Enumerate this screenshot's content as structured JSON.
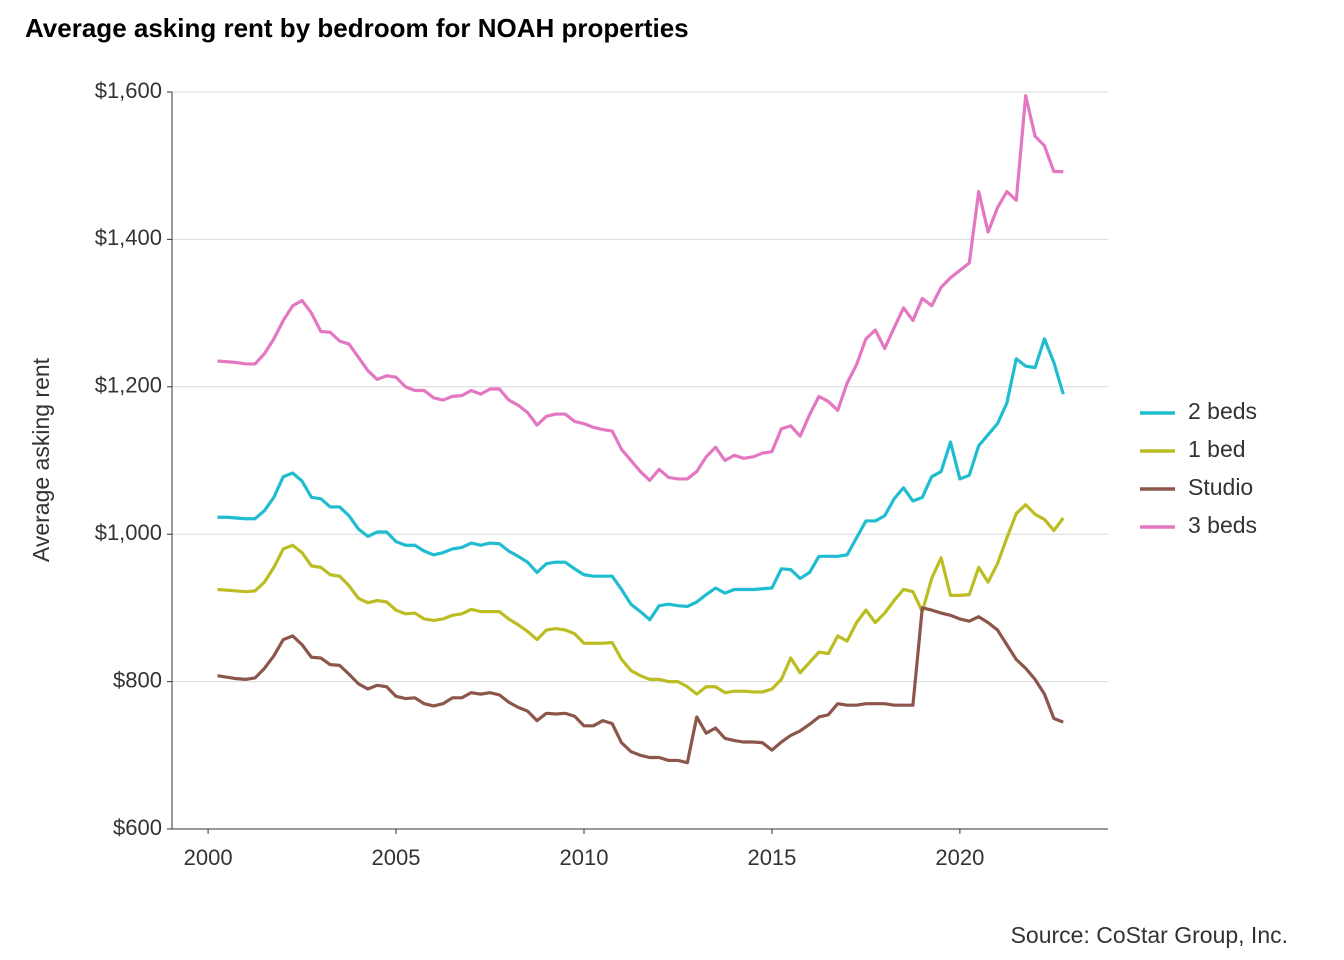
{
  "chart_data": {
    "type": "line",
    "title": "Average asking rent by bedroom for NOAH properties",
    "y_label": "Average asking rent",
    "source": "Source: CoStar Group, Inc.",
    "xlim": [
      1999.04,
      2023.94
    ],
    "ylim": [
      600,
      1600
    ],
    "xticks": [
      2000,
      2005,
      2010,
      2015,
      2020
    ],
    "yticks": [
      {
        "value": 600,
        "label": "$600"
      },
      {
        "value": 800,
        "label": "$800"
      },
      {
        "value": 1000,
        "label": "$1,000"
      },
      {
        "value": 1200,
        "label": "$1,200"
      },
      {
        "value": 1400,
        "label": "$1,400"
      },
      {
        "value": 1600,
        "label": "$1,600"
      }
    ],
    "grid": true,
    "legend": "right",
    "x": [
      2000.25,
      2000.5,
      2000.75,
      2001,
      2001.25,
      2001.5,
      2001.75,
      2002,
      2002.25,
      2002.5,
      2002.75,
      2003,
      2003.25,
      2003.5,
      2003.75,
      2004,
      2004.25,
      2004.5,
      2004.75,
      2005,
      2005.25,
      2005.5,
      2005.75,
      2006,
      2006.25,
      2006.5,
      2006.75,
      2007,
      2007.25,
      2007.5,
      2007.75,
      2008,
      2008.25,
      2008.5,
      2008.75,
      2009,
      2009.25,
      2009.5,
      2009.75,
      2010,
      2010.25,
      2010.5,
      2010.75,
      2011,
      2011.25,
      2011.5,
      2011.75,
      2012,
      2012.25,
      2012.5,
      2012.75,
      2013,
      2013.25,
      2013.5,
      2013.75,
      2014,
      2014.25,
      2014.5,
      2014.75,
      2015,
      2015.25,
      2015.5,
      2015.75,
      2016,
      2016.25,
      2016.5,
      2016.75,
      2017,
      2017.25,
      2017.5,
      2017.75,
      2018,
      2018.25,
      2018.5,
      2018.75,
      2019,
      2019.25,
      2019.5,
      2019.75,
      2020,
      2020.25,
      2020.5,
      2020.75,
      2021,
      2021.25,
      2021.5,
      2021.75,
      2022,
      2022.25,
      2022.5,
      2022.75
    ],
    "series": [
      {
        "name": "2 beds",
        "color": "#1fbdcf",
        "values": [
          1023,
          1023,
          1022,
          1021,
          1021,
          1032,
          1050,
          1078,
          1083,
          1072,
          1050,
          1048,
          1037,
          1037,
          1025,
          1007,
          997,
          1003,
          1003,
          990,
          985,
          985,
          977,
          972,
          975,
          980,
          982,
          988,
          985,
          988,
          987,
          977,
          970,
          962,
          948,
          960,
          962,
          962,
          953,
          945,
          943,
          943,
          943,
          925,
          905,
          895,
          884,
          903,
          905,
          903,
          902,
          908,
          918,
          927,
          920,
          925,
          925,
          925,
          926,
          927,
          953,
          952,
          940,
          948,
          970,
          970,
          970,
          972,
          995,
          1018,
          1018,
          1025,
          1048,
          1063,
          1045,
          1050,
          1078,
          1085,
          1125,
          1075,
          1080,
          1120,
          1135,
          1150,
          1178,
          1238,
          1228,
          1226,
          1265,
          1233,
          1190
        ]
      },
      {
        "name": "1 bed",
        "color": "#bcbd22",
        "values": [
          925,
          924,
          923,
          922,
          923,
          935,
          955,
          980,
          985,
          975,
          957,
          955,
          945,
          943,
          930,
          913,
          907,
          910,
          908,
          897,
          892,
          893,
          885,
          883,
          885,
          890,
          892,
          898,
          895,
          895,
          895,
          885,
          877,
          868,
          857,
          870,
          872,
          870,
          865,
          852,
          852,
          852,
          853,
          830,
          815,
          808,
          803,
          803,
          800,
          800,
          793,
          783,
          793,
          793,
          785,
          787,
          787,
          786,
          786,
          790,
          803,
          832,
          812,
          826,
          840,
          838,
          862,
          855,
          880,
          897,
          880,
          893,
          910,
          925,
          922,
          895,
          940,
          968,
          917,
          917,
          918,
          955,
          935,
          960,
          995,
          1028,
          1040,
          1027,
          1020,
          1005,
          1022
        ]
      },
      {
        "name": "Studio",
        "color": "#8c564b",
        "values": [
          808,
          806,
          804,
          803,
          805,
          818,
          835,
          857,
          862,
          850,
          833,
          832,
          823,
          822,
          810,
          797,
          790,
          795,
          793,
          780,
          777,
          778,
          770,
          767,
          770,
          778,
          778,
          785,
          783,
          785,
          782,
          772,
          765,
          760,
          747,
          757,
          756,
          757,
          753,
          740,
          740,
          747,
          743,
          717,
          705,
          700,
          697,
          697,
          693,
          693,
          690,
          752,
          730,
          737,
          723,
          720,
          718,
          718,
          717,
          707,
          718,
          727,
          733,
          742,
          752,
          755,
          770,
          768,
          768,
          770,
          770,
          770,
          768,
          768,
          768,
          900,
          897,
          893,
          890,
          885,
          882,
          888,
          880,
          870,
          850,
          830,
          818,
          803,
          783,
          750,
          745
        ]
      },
      {
        "name": "3 beds",
        "color": "#e377c2",
        "values": [
          1235,
          1234,
          1233,
          1231,
          1231,
          1245,
          1265,
          1290,
          1310,
          1317,
          1300,
          1275,
          1274,
          1262,
          1258,
          1240,
          1222,
          1210,
          1215,
          1213,
          1200,
          1195,
          1195,
          1185,
          1182,
          1187,
          1188,
          1195,
          1190,
          1197,
          1197,
          1182,
          1175,
          1165,
          1148,
          1160,
          1163,
          1163,
          1153,
          1150,
          1145,
          1142,
          1140,
          1115,
          1100,
          1085,
          1073,
          1088,
          1077,
          1075,
          1075,
          1085,
          1105,
          1118,
          1100,
          1107,
          1103,
          1105,
          1110,
          1112,
          1143,
          1147,
          1133,
          1162,
          1187,
          1180,
          1168,
          1205,
          1230,
          1265,
          1277,
          1252,
          1280,
          1307,
          1290,
          1320,
          1310,
          1335,
          1348,
          1358,
          1368,
          1465,
          1410,
          1443,
          1465,
          1453,
          1595,
          1540,
          1527,
          1492,
          1492
        ]
      }
    ]
  }
}
